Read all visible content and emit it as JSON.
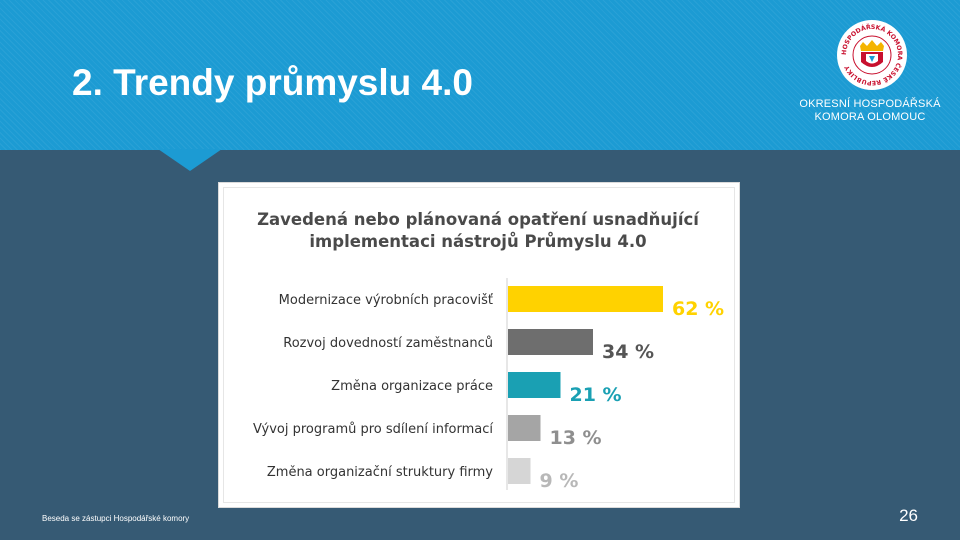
{
  "slide": {
    "title": "2. Trendy průmyslu 4.0",
    "footer": "Beseda se zástupci Hospodářské komory",
    "page_number": "26",
    "colors": {
      "header": "#1c9bd3",
      "background": "#365a74"
    }
  },
  "logo": {
    "ring_text": "HOSPODÁŘSKÁ KOMORA ČESKÉ REPUBLIKY",
    "line1": "OKRESNÍ HOSPODÁŘSKÁ",
    "line2": "KOMORA OLOMOUC",
    "icon": "chamber-emblem-icon"
  },
  "chart_data": {
    "type": "bar",
    "orientation": "horizontal",
    "title": "Zavedená nebo plánovaná opatření usnadňující implementaci nástrojů Průmyslu 4.0",
    "title_lines": [
      "Zavedená nebo plánovaná opatření usnadňující",
      "implementaci nástrojů Průmyslu 4.0"
    ],
    "categories": [
      "Modernizace výrobních pracovišť",
      "Rozvoj dovedností zaměstnanců",
      "Změna organizace práce",
      "Vývoj programů pro sdílení informací",
      "Změna organizační struktury firmy"
    ],
    "values": [
      62,
      34,
      21,
      13,
      9
    ],
    "unit": "%",
    "colors": [
      "#ffd200",
      "#6e6e6e",
      "#1aa0b3",
      "#a5a5a5",
      "#d6d6d6"
    ],
    "value_label_colors": [
      "#ffd200",
      "#555555",
      "#1aa0b3",
      "#8f8f8f",
      "#b8b8b8"
    ],
    "xlim": [
      0,
      100
    ],
    "grid": false,
    "legend": "none"
  }
}
